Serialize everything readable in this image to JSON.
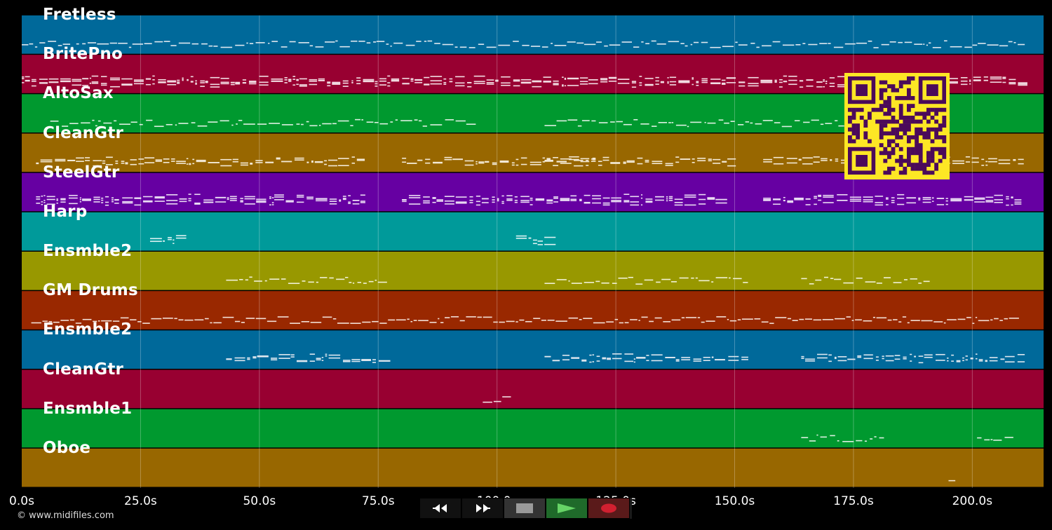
{
  "tracks": [
    {
      "name": "Fretless",
      "color": "#00699a",
      "notes": "#dfe7ef"
    },
    {
      "name": "BritePno",
      "color": "#980031",
      "notes": "#f2dde3"
    },
    {
      "name": "AltoSax",
      "color": "#00992f",
      "notes": "#ddf0e2"
    },
    {
      "name": "CleanGtr",
      "color": "#986700",
      "notes": "#f3e9d6"
    },
    {
      "name": "SteelGtr",
      "color": "#6600a2",
      "notes": "#eadcf3"
    },
    {
      "name": "Harp",
      "color": "#009a9a",
      "notes": "#ddf2f2"
    },
    {
      "name": "Ensmble2",
      "color": "#989800",
      "notes": "#f1f1d6"
    },
    {
      "name": "GM Drums",
      "color": "#992800",
      "notes": "#f2dfd6"
    },
    {
      "name": "Ensmble2",
      "color": "#00699a",
      "notes": "#dfe7ef"
    },
    {
      "name": "CleanGtr",
      "color": "#980031",
      "notes": "#f2dde3"
    },
    {
      "name": "Ensmble1",
      "color": "#00992f",
      "notes": "#ddf0e2"
    },
    {
      "name": "Oboe",
      "color": "#986700",
      "notes": "#f3e9d6"
    }
  ],
  "time_axis": {
    "max_seconds": 215,
    "ticks": [
      {
        "value": 0,
        "label": "0.0s"
      },
      {
        "value": 25,
        "label": "25.0s"
      },
      {
        "value": 50,
        "label": "50.0s"
      },
      {
        "value": 75,
        "label": "75.0s"
      },
      {
        "value": 100,
        "label": "100.0s"
      },
      {
        "value": 125,
        "label": "125.0s"
      },
      {
        "value": 150,
        "label": "150.0s"
      },
      {
        "value": 175,
        "label": "175.0s"
      },
      {
        "value": 200,
        "label": "200.0s"
      }
    ]
  },
  "transport": {
    "rewind_icon": "rewind-icon",
    "forward_icon": "fast-forward-icon",
    "stop_icon": "stop-icon",
    "play_icon": "play-icon",
    "record_icon": "record-icon",
    "colors": {
      "play": "#2f8f2f",
      "record": "#d02030",
      "stop": "#888888"
    }
  },
  "qr_code": {
    "icon": "qr-code-icon",
    "fg": "#4b0a5a",
    "bg": "#fde725"
  },
  "copyright": "© www.midifiles.com"
}
